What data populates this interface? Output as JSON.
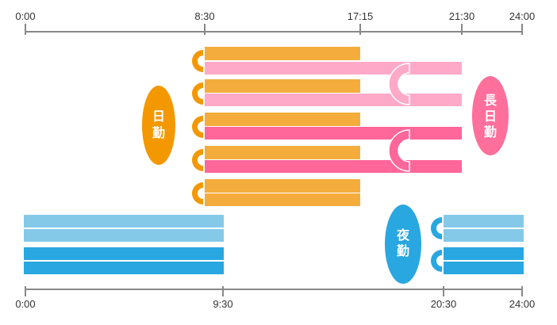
{
  "colors": {
    "axis": "#888888",
    "day_shift": "#f4ad3c",
    "day_accent": "#f39800",
    "long_shift_light": "#ffa9c8",
    "long_shift_dark": "#ff6699",
    "long_badge": "#ff6f9c",
    "night_light": "#85c9e9",
    "night_dark": "#29a7e0",
    "night_badge": "#29a7e0"
  },
  "top_axis": {
    "ticks": [
      {
        "label": "0:00",
        "hour": 0
      },
      {
        "label": "8:30",
        "hour": 8.5
      },
      {
        "label": "17:15",
        "hour": 17.25
      },
      {
        "label": "21:30",
        "hour": 21.5
      },
      {
        "label": "24:00",
        "hour": 24
      }
    ]
  },
  "bottom_axis": {
    "ticks": [
      {
        "label": "0:00",
        "hour": 0
      },
      {
        "label": "9:30",
        "hour": 9.5
      },
      {
        "label": "20:30",
        "hour": 20.5
      },
      {
        "label": "24:00",
        "hour": 24
      }
    ]
  },
  "badges": {
    "day": {
      "label": "日勤",
      "chars": [
        "日",
        "勤"
      ]
    },
    "long": {
      "label": "長日勤",
      "chars": [
        "長",
        "日",
        "勤"
      ]
    },
    "night": {
      "label": "夜勤",
      "chars": [
        "夜",
        "勤"
      ]
    }
  },
  "shifts": {
    "day": {
      "start_hour": 8.5,
      "end_hour": 17.25,
      "bars": 5,
      "each_bar_has_two_strips": true
    },
    "long_day": {
      "start_hour": 8.5,
      "end_hour": 21.5,
      "blocks": [
        {
          "shade": "light"
        },
        {
          "shade": "dark"
        }
      ]
    },
    "night": {
      "first_part": {
        "start_hour": 0,
        "end_hour": 9.5
      },
      "second_part": {
        "start_hour": 20.5,
        "end_hour": 24
      },
      "blocks": [
        {
          "shade": "light"
        },
        {
          "shade": "dark"
        }
      ]
    }
  },
  "icons": {
    "continuation": "half-ring-icon"
  }
}
